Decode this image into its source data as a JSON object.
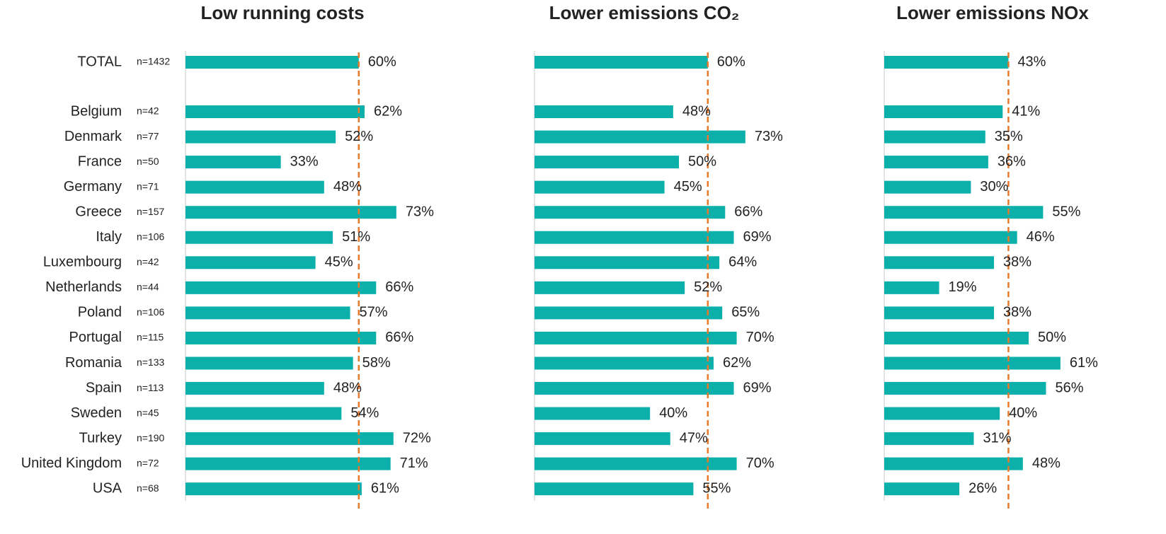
{
  "chart_data": [
    {
      "type": "bar",
      "orientation": "horizontal",
      "title": "Low running costs",
      "categories": [
        "TOTAL",
        "Belgium",
        "Denmark",
        "France",
        "Germany",
        "Greece",
        "Italy",
        "Luxembourg",
        "Netherlands",
        "Poland",
        "Portugal",
        "Romania",
        "Spain",
        "Sweden",
        "Turkey",
        "United Kingdom",
        "USA"
      ],
      "sample_sizes": [
        "n=1432",
        "n=42",
        "n=77",
        "n=50",
        "n=71",
        "n=157",
        "n=106",
        "n=42",
        "n=44",
        "n=106",
        "n=115",
        "n=133",
        "n=113",
        "n=45",
        "n=190",
        "n=72",
        "n=68"
      ],
      "values": [
        60,
        62,
        52,
        33,
        48,
        73,
        51,
        45,
        66,
        57,
        66,
        58,
        48,
        54,
        72,
        71,
        61
      ],
      "value_labels": [
        "60%",
        "62%",
        "52%",
        "33%",
        "48%",
        "73%",
        "51%",
        "45%",
        "66%",
        "57%",
        "66%",
        "58%",
        "48%",
        "54%",
        "72%",
        "71%",
        "61%"
      ],
      "xlim": [
        0,
        100
      ],
      "color": "#0bb0aa",
      "reference_color": "#e8782a"
    },
    {
      "type": "bar",
      "orientation": "horizontal",
      "title": "Lower emissions CO₂",
      "values": [
        60,
        48,
        73,
        50,
        45,
        66,
        69,
        64,
        52,
        65,
        70,
        62,
        69,
        40,
        47,
        70,
        55
      ],
      "value_labels": [
        "60%",
        "48%",
        "73%",
        "50%",
        "45%",
        "66%",
        "69%",
        "64%",
        "52%",
        "65%",
        "70%",
        "62%",
        "69%",
        "40%",
        "47%",
        "70%",
        "55%"
      ],
      "xlim": [
        0,
        100
      ],
      "color": "#0bb0aa",
      "reference_color": "#e8782a"
    },
    {
      "type": "bar",
      "orientation": "horizontal",
      "title": "Lower emissions NOx",
      "values": [
        43,
        41,
        35,
        36,
        30,
        55,
        46,
        38,
        19,
        38,
        50,
        61,
        56,
        40,
        31,
        48,
        26
      ],
      "value_labels": [
        "43%",
        "41%",
        "35%",
        "36%",
        "30%",
        "55%",
        "46%",
        "38%",
        "19%",
        "38%",
        "50%",
        "61%",
        "56%",
        "40%",
        "31%",
        "48%",
        "26%"
      ],
      "xlim": [
        0,
        100
      ],
      "color": "#0bb0aa",
      "reference_color": "#e8782a"
    }
  ]
}
